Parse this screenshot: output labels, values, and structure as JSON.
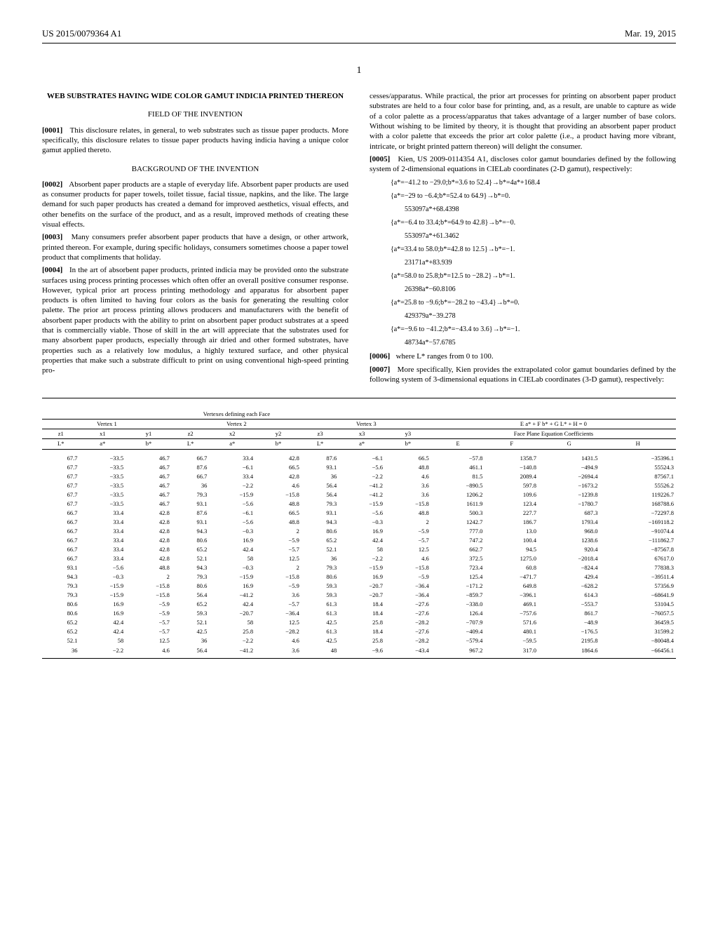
{
  "header": {
    "pub_number": "US 2015/0079364 A1",
    "pub_date": "Mar. 19, 2015"
  },
  "page_number": "1",
  "left_col": {
    "title": "WEB SUBSTRATES HAVING WIDE COLOR GAMUT INDICIA PRINTED THEREON",
    "field_heading": "FIELD OF THE INVENTION",
    "para1_num": "[0001]",
    "para1": "This disclosure relates, in general, to web substrates such as tissue paper products. More specifically, this disclosure relates to tissue paper products having indicia having a unique color gamut applied thereto.",
    "bg_heading": "BACKGROUND OF THE INVENTION",
    "para2_num": "[0002]",
    "para2": "Absorbent paper products are a staple of everyday life. Absorbent paper products are used as consumer products for paper towels, toilet tissue, facial tissue, napkins, and the like. The large demand for such paper products has created a demand for improved aesthetics, visual effects, and other benefits on the surface of the product, and as a result, improved methods of creating these visual effects.",
    "para3_num": "[0003]",
    "para3": "Many consumers prefer absorbent paper products that have a design, or other artwork, printed thereon. For example, during specific holidays, consumers sometimes choose a paper towel product that compliments that holiday.",
    "para4_num": "[0004]",
    "para4": "In the art of absorbent paper products, printed indicia may be provided onto the substrate surfaces using process printing processes which often offer an overall positive consumer response. However, typical prior art process printing methodology and apparatus for absorbent paper products is often limited to having four colors as the basis for generating the resulting color palette. The prior art process printing allows producers and manufacturers with the benefit of absorbent paper products with the ability to print on absorbent paper product substrates at a speed that is commercially viable. Those of skill in the art will appreciate that the substrates used for many absorbent paper products, especially through air dried and other formed substrates, have properties such as a relatively low modulus, a highly textured surface, and other physical properties that make such a substrate difficult to print on using conventional high-speed printing pro-"
  },
  "right_col": {
    "para4_cont": "cesses/apparatus. While practical, the prior art processes for printing on absorbent paper product substrates are held to a four color base for printing, and, as a result, are unable to capture as wide of a color palette as a process/apparatus that takes advantage of a larger number of base colors. Without wishing to be limited by theory, it is thought that providing an absorbent paper product with a color palette that exceeds the prior art color palette (i.e., a product having more vibrant, intricate, or bright printed pattern thereon) will delight the consumer.",
    "para5_num": "[0005]",
    "para5": "Kien, US 2009-0114354 A1, discloses color gamut boundaries defined by the following system of 2-dimensional equations in CIELab coordinates (2-D gamut), respectively:",
    "eq1": "{a*=−41.2 to −29.0;b*=3.6 to 52.4}→b*=4a*+168.4",
    "eq2a": "{a*=−29 to −6.4;b*=52.4 to 64.9}→b*=0.",
    "eq2b": "553097a*+68.4398",
    "eq3a": "{a*=−6.4 to 33.4;b*=64.9 to 42.8}→b*=−0.",
    "eq3b": "553097a*+61.3462",
    "eq4a": "{a*=33.4 to 58.0;b*=42.8 to 12.5}→b*=−1.",
    "eq4b": "23171a*+83.939",
    "eq5a": "{a*=58.0 to 25.8;b*=12.5 to −28.2}→b*=1.",
    "eq5b": "26398a*−60.8106",
    "eq6a": "{a*=25.8 to −9.6;b*=−28.2 to −43.4}→b*=0.",
    "eq6b": "429379a*−39.278",
    "eq7a": "{a*=−9.6 to −41.2;b*=−43.4 to 3.6}→b*=−1.",
    "eq7b": "48734a*−57.6785",
    "para6_num": "[0006]",
    "para6": "where L* ranges from 0 to 100.",
    "para7_num": "[0007]",
    "para7": "More specifically, Kien provides the extrapolated color gamut boundaries defined by the following system of 3-dimensional equations in CIELab coordinates (3-D gamut), respectively:"
  },
  "table": {
    "main_header": "Vertexes defining each Face",
    "vertex_headers": [
      "Vertex 1",
      "Vertex 2",
      "Vertex 3"
    ],
    "equation_header": "E a* + F b* + G L* + H = 0",
    "coef_header": "Face Plane Equation Coefficients",
    "sub_headers_z": [
      "z1",
      "z2",
      "z3"
    ],
    "sub_headers_xy": [
      "x1",
      "y1",
      "x2",
      "y2",
      "x3",
      "y3"
    ],
    "col_labels": [
      "L*",
      "a*",
      "b*",
      "L*",
      "a*",
      "b*",
      "L*",
      "a*",
      "b*",
      "E",
      "F",
      "G",
      "H"
    ],
    "rows": [
      [
        "67.7",
        "−33.5",
        "46.7",
        "66.7",
        "33.4",
        "42.8",
        "87.6",
        "−6.1",
        "66.5",
        "−57.8",
        "1358.7",
        "1431.5",
        "−35396.1"
      ],
      [
        "67.7",
        "−33.5",
        "46.7",
        "87.6",
        "−6.1",
        "66.5",
        "93.1",
        "−5.6",
        "48.8",
        "461.1",
        "−140.8",
        "−494.9",
        "55524.3"
      ],
      [
        "67.7",
        "−33.5",
        "46.7",
        "66.7",
        "33.4",
        "42.8",
        "36",
        "−2.2",
        "4.6",
        "81.5",
        "2089.4",
        "−2694.4",
        "87567.1"
      ],
      [
        "67.7",
        "−33.5",
        "46.7",
        "36",
        "−2.2",
        "4.6",
        "56.4",
        "−41.2",
        "3.6",
        "−890.5",
        "597.8",
        "−1673.2",
        "55526.2"
      ],
      [
        "67.7",
        "−33.5",
        "46.7",
        "79.3",
        "−15.9",
        "−15.8",
        "56.4",
        "−41.2",
        "3.6",
        "1206.2",
        "109.6",
        "−1239.8",
        "119226.7"
      ],
      [
        "67.7",
        "−33.5",
        "46.7",
        "93.1",
        "−5.6",
        "48.8",
        "79.3",
        "−15.9",
        "−15.8",
        "1611.9",
        "123.4",
        "−1780.7",
        "168788.6"
      ],
      [
        "66.7",
        "33.4",
        "42.8",
        "87.6",
        "−6.1",
        "66.5",
        "93.1",
        "−5.6",
        "48.8",
        "500.3",
        "227.7",
        "687.3",
        "−72297.8"
      ],
      [
        "66.7",
        "33.4",
        "42.8",
        "93.1",
        "−5.6",
        "48.8",
        "94.3",
        "−0.3",
        "2",
        "1242.7",
        "186.7",
        "1793.4",
        "−169118.2"
      ],
      [
        "66.7",
        "33.4",
        "42.8",
        "94.3",
        "−0.3",
        "2",
        "80.6",
        "16.9",
        "−5.9",
        "777.0",
        "13.0",
        "968.0",
        "−91074.4"
      ],
      [
        "66.7",
        "33.4",
        "42.8",
        "80.6",
        "16.9",
        "−5.9",
        "65.2",
        "42.4",
        "−5.7",
        "747.2",
        "100.4",
        "1238.6",
        "−111862.7"
      ],
      [
        "66.7",
        "33.4",
        "42.8",
        "65.2",
        "42.4",
        "−5.7",
        "52.1",
        "58",
        "12.5",
        "662.7",
        "94.5",
        "920.4",
        "−87567.8"
      ],
      [
        "66.7",
        "33.4",
        "42.8",
        "52.1",
        "58",
        "12.5",
        "36",
        "−2.2",
        "4.6",
        "372.5",
        "1275.0",
        "−2018.4",
        "67617.0"
      ],
      [
        "93.1",
        "−5.6",
        "48.8",
        "94.3",
        "−0.3",
        "2",
        "79.3",
        "−15.9",
        "−15.8",
        "723.4",
        "60.8",
        "−824.4",
        "77838.3"
      ],
      [
        "94.3",
        "−0.3",
        "2",
        "79.3",
        "−15.9",
        "−15.8",
        "80.6",
        "16.9",
        "−5.9",
        "125.4",
        "−471.7",
        "429.4",
        "−39511.4"
      ],
      [
        "79.3",
        "−15.9",
        "−15.8",
        "80.6",
        "16.9",
        "−5.9",
        "59.3",
        "−20.7",
        "−36.4",
        "−171.2",
        "649.8",
        "−628.2",
        "57356.9"
      ],
      [
        "79.3",
        "−15.9",
        "−15.8",
        "56.4",
        "−41.2",
        "3.6",
        "59.3",
        "−20.7",
        "−36.4",
        "−859.7",
        "−396.1",
        "614.3",
        "−68641.9"
      ],
      [
        "80.6",
        "16.9",
        "−5.9",
        "65.2",
        "42.4",
        "−5.7",
        "61.3",
        "18.4",
        "−27.6",
        "−338.0",
        "469.1",
        "−553.7",
        "53104.5"
      ],
      [
        "80.6",
        "16.9",
        "−5.9",
        "59.3",
        "−20.7",
        "−36.4",
        "61.3",
        "18.4",
        "−27.6",
        "126.4",
        "−757.6",
        "861.7",
        "−76057.5"
      ],
      [
        "65.2",
        "42.4",
        "−5.7",
        "52.1",
        "58",
        "12.5",
        "42.5",
        "25.8",
        "−28.2",
        "−707.9",
        "571.6",
        "−48.9",
        "36459.5"
      ],
      [
        "65.2",
        "42.4",
        "−5.7",
        "42.5",
        "25.8",
        "−28.2",
        "61.3",
        "18.4",
        "−27.6",
        "−409.4",
        "480.1",
        "−176.5",
        "31599.2"
      ],
      [
        "52.1",
        "58",
        "12.5",
        "36",
        "−2.2",
        "4.6",
        "42.5",
        "25.8",
        "−28.2",
        "−579.4",
        "−59.5",
        "2195.8",
        "−80048.4"
      ],
      [
        "36",
        "−2.2",
        "4.6",
        "56.4",
        "−41.2",
        "3.6",
        "48",
        "−9.6",
        "−43.4",
        "967.2",
        "317.0",
        "1864.6",
        "−66456.1"
      ]
    ]
  }
}
